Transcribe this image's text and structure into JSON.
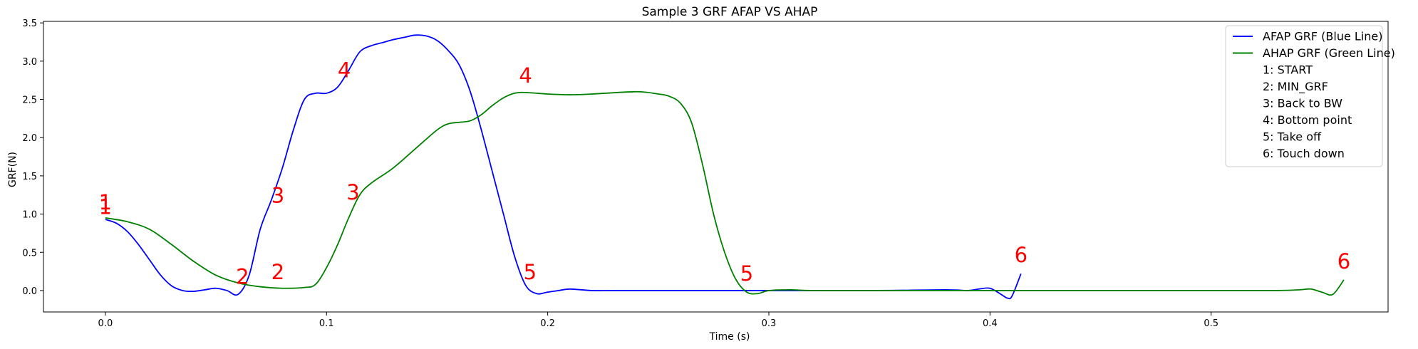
{
  "chart_data": {
    "type": "line",
    "title": "Sample 3 GRF AFAP VS AHAP",
    "xlabel": "Time (s)",
    "ylabel": "GRF(N)",
    "xlim": [
      -0.028,
      0.58
    ],
    "ylim": [
      -0.28,
      3.52
    ],
    "xticks": [
      0.0,
      0.1,
      0.2,
      0.3,
      0.4,
      0.5
    ],
    "xtick_labels": [
      "0.0",
      "0.1",
      "0.2",
      "0.3",
      "0.4",
      "0.5"
    ],
    "yticks": [
      0.0,
      0.5,
      1.0,
      1.5,
      2.0,
      2.5,
      3.0,
      3.5
    ],
    "ytick_labels": [
      "0.0",
      "0.5",
      "1.0",
      "1.5",
      "2.0",
      "2.5",
      "3.0",
      "3.5"
    ],
    "grid": false,
    "legend_position": "top-right",
    "series": [
      {
        "name": "AFAP GRF (Blue Line)",
        "color": "#0000ff",
        "x": [
          0.0,
          0.005,
          0.01,
          0.015,
          0.02,
          0.025,
          0.03,
          0.035,
          0.04,
          0.045,
          0.05,
          0.055,
          0.06,
          0.065,
          0.07,
          0.075,
          0.08,
          0.085,
          0.09,
          0.095,
          0.1,
          0.105,
          0.11,
          0.115,
          0.12,
          0.125,
          0.13,
          0.135,
          0.14,
          0.145,
          0.15,
          0.155,
          0.16,
          0.165,
          0.17,
          0.175,
          0.18,
          0.185,
          0.19,
          0.195,
          0.2,
          0.205,
          0.21,
          0.22,
          0.23,
          0.25,
          0.3,
          0.35,
          0.38,
          0.39,
          0.395,
          0.4,
          0.405,
          0.408,
          0.41,
          0.414
        ],
        "y": [
          0.93,
          0.88,
          0.77,
          0.6,
          0.4,
          0.2,
          0.06,
          0.0,
          -0.01,
          0.01,
          0.03,
          0.0,
          -0.05,
          0.2,
          0.8,
          1.18,
          1.6,
          2.1,
          2.5,
          2.58,
          2.58,
          2.66,
          2.88,
          3.12,
          3.2,
          3.24,
          3.28,
          3.31,
          3.34,
          3.33,
          3.27,
          3.14,
          2.95,
          2.6,
          2.1,
          1.55,
          1.0,
          0.45,
          0.07,
          -0.04,
          -0.02,
          0.0,
          0.02,
          0.0,
          0.0,
          0.0,
          0.0,
          0.0,
          0.01,
          0.0,
          0.02,
          0.03,
          -0.05,
          -0.1,
          -0.07,
          0.22
        ]
      },
      {
        "name": "AHAP GRF (Green Line)",
        "color": "#008000",
        "x": [
          0.0,
          0.01,
          0.02,
          0.03,
          0.04,
          0.05,
          0.06,
          0.07,
          0.08,
          0.09,
          0.095,
          0.1,
          0.105,
          0.11,
          0.115,
          0.12,
          0.13,
          0.14,
          0.15,
          0.155,
          0.16,
          0.165,
          0.17,
          0.175,
          0.18,
          0.185,
          0.19,
          0.2,
          0.21,
          0.22,
          0.24,
          0.25,
          0.255,
          0.26,
          0.265,
          0.27,
          0.275,
          0.28,
          0.285,
          0.29,
          0.295,
          0.3,
          0.31,
          0.32,
          0.35,
          0.4,
          0.45,
          0.5,
          0.53,
          0.54,
          0.545,
          0.55,
          0.555,
          0.56
        ],
        "y": [
          0.95,
          0.9,
          0.8,
          0.6,
          0.38,
          0.2,
          0.1,
          0.05,
          0.03,
          0.04,
          0.08,
          0.3,
          0.6,
          0.95,
          1.25,
          1.4,
          1.6,
          1.85,
          2.1,
          2.18,
          2.2,
          2.22,
          2.3,
          2.42,
          2.52,
          2.58,
          2.59,
          2.57,
          2.56,
          2.57,
          2.6,
          2.57,
          2.54,
          2.45,
          2.2,
          1.65,
          1.0,
          0.5,
          0.15,
          -0.02,
          -0.04,
          0.0,
          0.01,
          0.0,
          0.0,
          0.0,
          0.0,
          0.0,
          0.0,
          0.01,
          0.02,
          -0.02,
          -0.05,
          0.14
        ]
      }
    ],
    "annotations": [
      {
        "text": "1",
        "x": 0.0,
        "y": 1.0,
        "color": "#ff0000"
      },
      {
        "text": "1",
        "x": 0.0,
        "y": 1.06,
        "color": "#ff0000"
      },
      {
        "text": "2",
        "x": 0.062,
        "y": 0.09,
        "color": "#ff0000"
      },
      {
        "text": "2",
        "x": 0.078,
        "y": 0.15,
        "color": "#ff0000"
      },
      {
        "text": "3",
        "x": 0.078,
        "y": 1.15,
        "color": "#ff0000"
      },
      {
        "text": "3",
        "x": 0.112,
        "y": 1.19,
        "color": "#ff0000"
      },
      {
        "text": "4",
        "x": 0.108,
        "y": 2.79,
        "color": "#ff0000"
      },
      {
        "text": "4",
        "x": 0.19,
        "y": 2.72,
        "color": "#ff0000"
      },
      {
        "text": "5",
        "x": 0.192,
        "y": 0.15,
        "color": "#ff0000"
      },
      {
        "text": "5",
        "x": 0.29,
        "y": 0.13,
        "color": "#ff0000"
      },
      {
        "text": "6",
        "x": 0.414,
        "y": 0.37,
        "color": "#ff0000"
      },
      {
        "text": "6",
        "x": 0.56,
        "y": 0.29,
        "color": "#ff0000"
      }
    ],
    "legend": [
      {
        "label": "AFAP GRF (Blue Line)",
        "color": "#0000ff",
        "line": true
      },
      {
        "label": "AHAP GRF (Green Line)",
        "color": "#008000",
        "line": true
      },
      {
        "label": "1: START",
        "line": false
      },
      {
        "label": "2: MIN_GRF",
        "line": false
      },
      {
        "label": "3: Back to BW",
        "line": false
      },
      {
        "label": "4: Bottom point",
        "line": false
      },
      {
        "label": "5: Take off",
        "line": false
      },
      {
        "label": "6: Touch down",
        "line": false
      }
    ]
  }
}
